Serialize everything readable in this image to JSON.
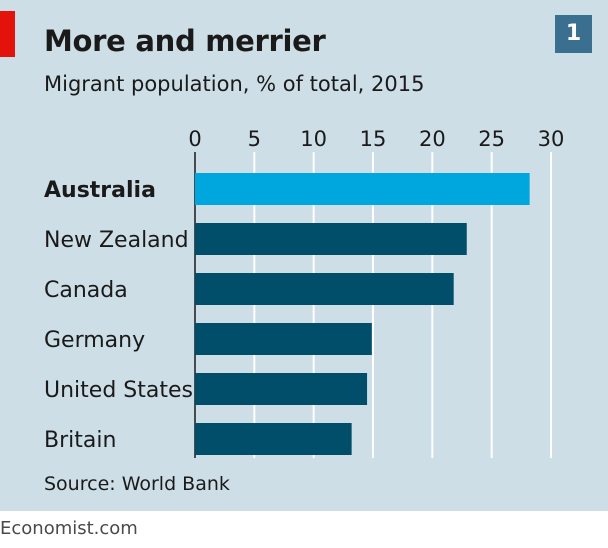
{
  "header": {
    "title": "More and merrier",
    "subtitle": "Migrant population, % of total, 2015",
    "badge": "1"
  },
  "footer": {
    "source": "Source: World Bank",
    "brand": "Economist.com"
  },
  "colors": {
    "panel_bg": "#cddee6",
    "accent": "#e3120b",
    "bar_highlight": "#00a7de",
    "bar_default": "#004e6a",
    "gridline": "#ffffff",
    "badge_bg": "#3a6f8f"
  },
  "chart_data": {
    "type": "bar",
    "orientation": "horizontal",
    "categories": [
      "Australia",
      "New Zealand",
      "Canada",
      "Germany",
      "United States",
      "Britain"
    ],
    "values": [
      28.2,
      22.9,
      21.8,
      14.9,
      14.5,
      13.2
    ],
    "highlight": "Australia",
    "xlim": [
      0,
      30
    ],
    "xticks": [
      0,
      5,
      10,
      15,
      20,
      25,
      30
    ],
    "title": "More and merrier",
    "subtitle": "Migrant population, % of total, 2015",
    "xlabel": "",
    "ylabel": "",
    "grid": true,
    "tick_position": "top"
  }
}
